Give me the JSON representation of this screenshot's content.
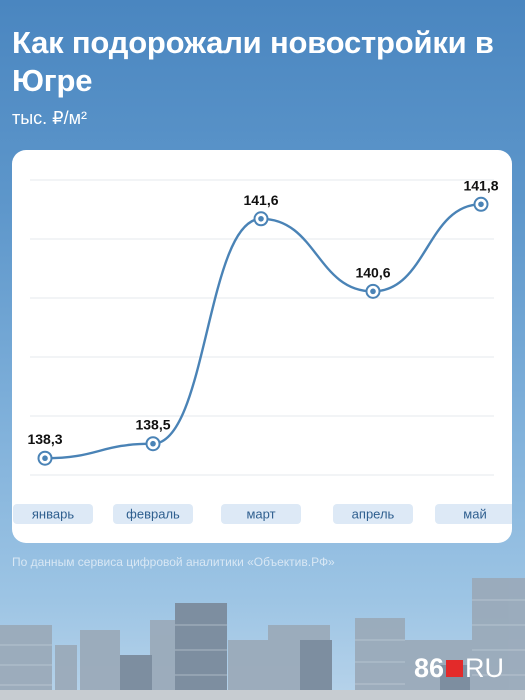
{
  "title": "Как подорожали новостройки в Югре",
  "subtitle": "тыс. ₽/м²",
  "source": "По данным сервиса цифровой аналитики «Объектив.РФ»",
  "logo": {
    "number": "86",
    "suffix": "RU"
  },
  "colors": {
    "background": "#5e97cb",
    "line": "#4a83b6",
    "marker_fill": "#ffffff",
    "label_box": "#dde9f6",
    "label_text": "#2f5f8f",
    "brand_red": "#e32a2a"
  },
  "chart_data": {
    "type": "line",
    "title": "Как подорожали новостройки в Югре",
    "ylabel": "тыс. ₽/м²",
    "xlabel": "",
    "categories": [
      "январь",
      "февраль",
      "март",
      "апрель",
      "май"
    ],
    "values": [
      138.3,
      138.5,
      141.6,
      140.6,
      141.8
    ],
    "value_labels": [
      "138,3",
      "138,5",
      "141,6",
      "140,6",
      "141,8"
    ],
    "ylim": [
      138.0,
      142.3
    ],
    "grid": true,
    "legend": "none"
  }
}
